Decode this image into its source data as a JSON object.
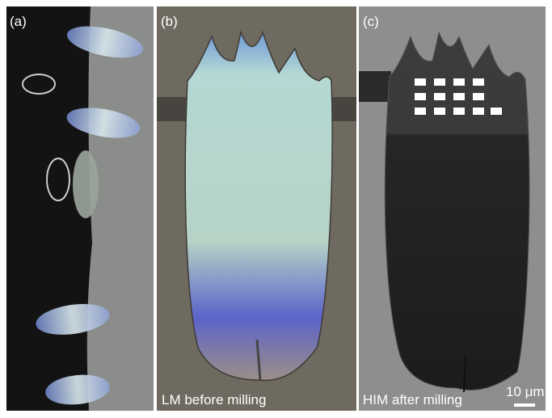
{
  "panels": [
    {
      "label": "(a)"
    },
    {
      "label": "(b)",
      "caption": "LM before milling"
    },
    {
      "label": "(c)",
      "caption": "HIM after milling",
      "scale_bar": "10 μm"
    }
  ]
}
